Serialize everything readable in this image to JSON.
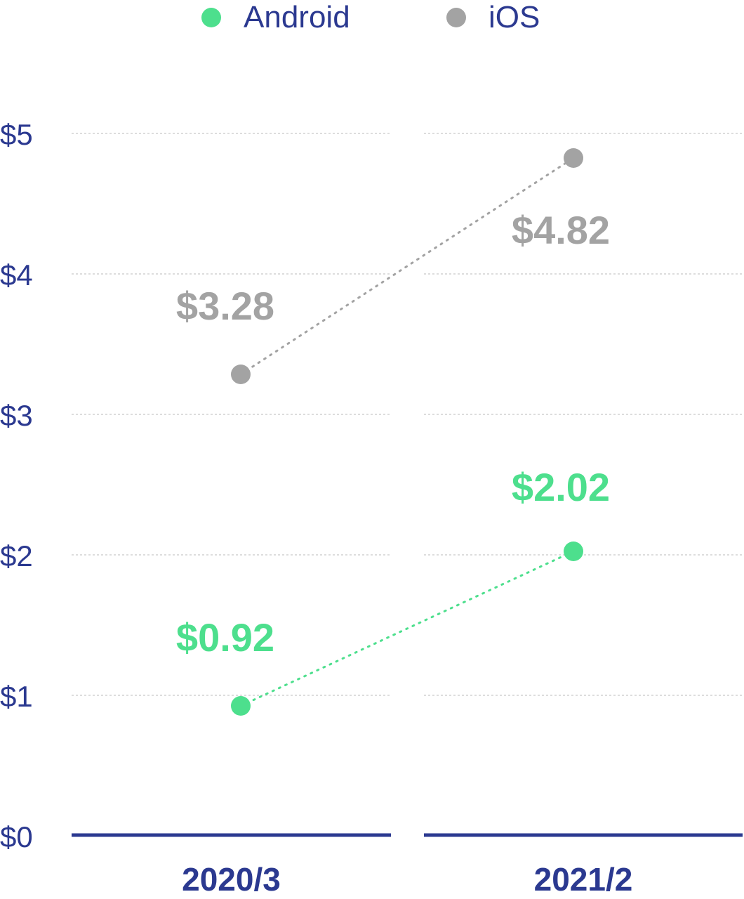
{
  "chart_data": {
    "type": "line",
    "categories": [
      "2020/3",
      "2021/2"
    ],
    "series": [
      {
        "name": "Android",
        "values": [
          0.92,
          2.02
        ],
        "labels": [
          "$0.92",
          "$2.02"
        ],
        "color": "#4ddf8d"
      },
      {
        "name": "iOS",
        "values": [
          3.28,
          4.82
        ],
        "labels": [
          "$3.28",
          "$4.82"
        ],
        "color": "#a3a3a3"
      }
    ],
    "ylim": [
      0,
      5
    ],
    "yticks": [
      0,
      1,
      2,
      3,
      4,
      5
    ],
    "ytick_labels": [
      "$0",
      "$1",
      "$2",
      "$3",
      "$4",
      "$5"
    ],
    "grid": true,
    "legend": "top-center",
    "axis_color": "#2b3990"
  }
}
